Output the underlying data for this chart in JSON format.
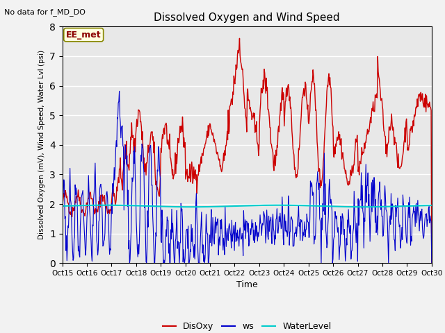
{
  "title": "Dissolved Oxygen and Wind Speed",
  "ylabel": "Dissolved Oxygen (mV), Wind Speed, Water Lvl (psi)",
  "xlabel": "Time",
  "top_left_text": "No data for f_MD_DO",
  "annotation_box": "EE_met",
  "ylim": [
    0.0,
    8.0
  ],
  "yticks": [
    0.0,
    1.0,
    2.0,
    3.0,
    4.0,
    5.0,
    6.0,
    7.0,
    8.0
  ],
  "xtick_labels": [
    "Oct 15",
    "Oct 16",
    "Oct 17",
    "Oct 18",
    "Oct 19",
    "Oct 20",
    "Oct 21",
    "Oct 22",
    "Oct 23",
    "Oct 24",
    "Oct 25",
    "Oct 26",
    "Oct 27",
    "Oct 28",
    "Oct 29",
    "Oct 30"
  ],
  "water_level": 1.93,
  "plot_bg_color": "#e8e8e8",
  "fig_bg_color": "#f2f2f2",
  "disoxy_color": "#cc0000",
  "ws_color": "#0000cc",
  "waterlevel_color": "#00cccc",
  "grid_color": "#ffffff",
  "legend_labels": [
    "DisOxy",
    "ws",
    "WaterLevel"
  ]
}
